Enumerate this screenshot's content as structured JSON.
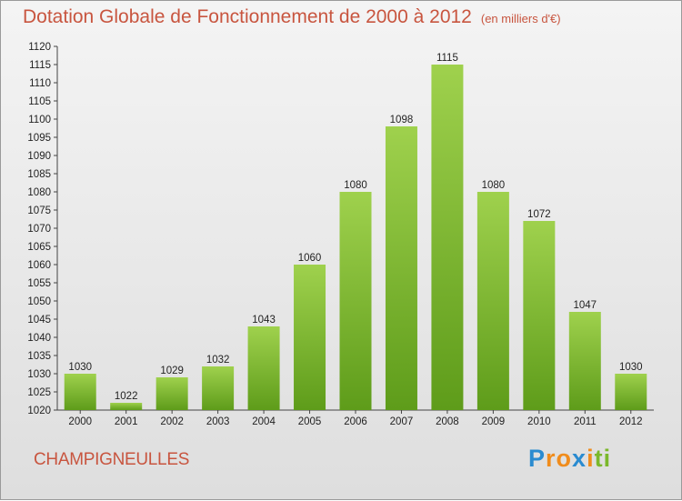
{
  "title": "Dotation Globale de Fonctionnement de 2000 à 2012",
  "unit": "(en milliers d'€)",
  "commune": "CHAMPIGNEULLES",
  "logo": {
    "letters": [
      "P",
      "r",
      "o",
      "x",
      "i",
      "t",
      "i"
    ],
    "colors": [
      "#2a8bd0",
      "#f08c1c",
      "#f08c1c",
      "#2a8bd0",
      "#f08c1c",
      "#7bb82b",
      "#7bb82b"
    ]
  },
  "colors": {
    "bar_top": "#9fd14d",
    "bar_bottom": "#5e9c1a",
    "title": "#c8553f"
  },
  "chart_data": {
    "type": "bar",
    "title": "Dotation Globale de Fonctionnement de 2000 à 2012",
    "ylabel": "",
    "xlabel": "",
    "categories": [
      "2000",
      "2001",
      "2002",
      "2003",
      "2004",
      "2005",
      "2006",
      "2007",
      "2008",
      "2009",
      "2010",
      "2011",
      "2012"
    ],
    "values": [
      1030,
      1022,
      1029,
      1032,
      1043,
      1060,
      1080,
      1098,
      1115,
      1080,
      1072,
      1047,
      1030
    ],
    "ylim": [
      1020,
      1120
    ],
    "ytick_step": 5,
    "grid": false,
    "legend": "none"
  }
}
